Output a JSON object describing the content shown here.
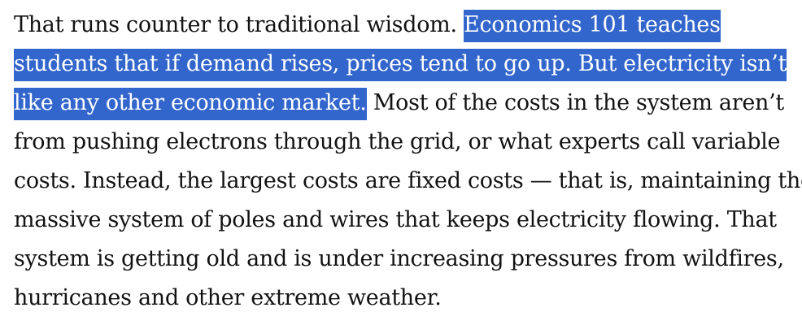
{
  "article": {
    "lines": [
      {
        "plain_before": "That runs counter to traditional wisdom. ",
        "highlighted": "Economics 101 teaches",
        "plain_after": ""
      },
      {
        "plain_before": "",
        "highlighted": "students that if demand rises, prices tend to go up. But electricity isn’t",
        "plain_after": ""
      },
      {
        "plain_before": "",
        "highlighted": "like any other economic market.",
        "plain_after": " Most of the costs in the system aren’t"
      },
      {
        "plain_before": "from pushing electrons through the grid, or what experts call variable",
        "highlighted": "",
        "plain_after": ""
      },
      {
        "plain_before": "costs. Instead, the largest costs are fixed costs — that is, maintaining the",
        "highlighted": "",
        "plain_after": ""
      },
      {
        "plain_before": "massive system of poles and wires that keeps electricity flowing. That",
        "highlighted": "",
        "plain_after": ""
      },
      {
        "plain_before": "system is getting old and is under increasing pressures from wildfires,",
        "highlighted": "",
        "plain_after": ""
      },
      {
        "plain_before": "hurricanes and other extreme weather.",
        "highlighted": "",
        "plain_after": ""
      }
    ]
  },
  "colors": {
    "selection_background": "#3366cc",
    "selection_text": "#ffffff",
    "body_text": "#121212",
    "page_background": "#ffffff"
  }
}
